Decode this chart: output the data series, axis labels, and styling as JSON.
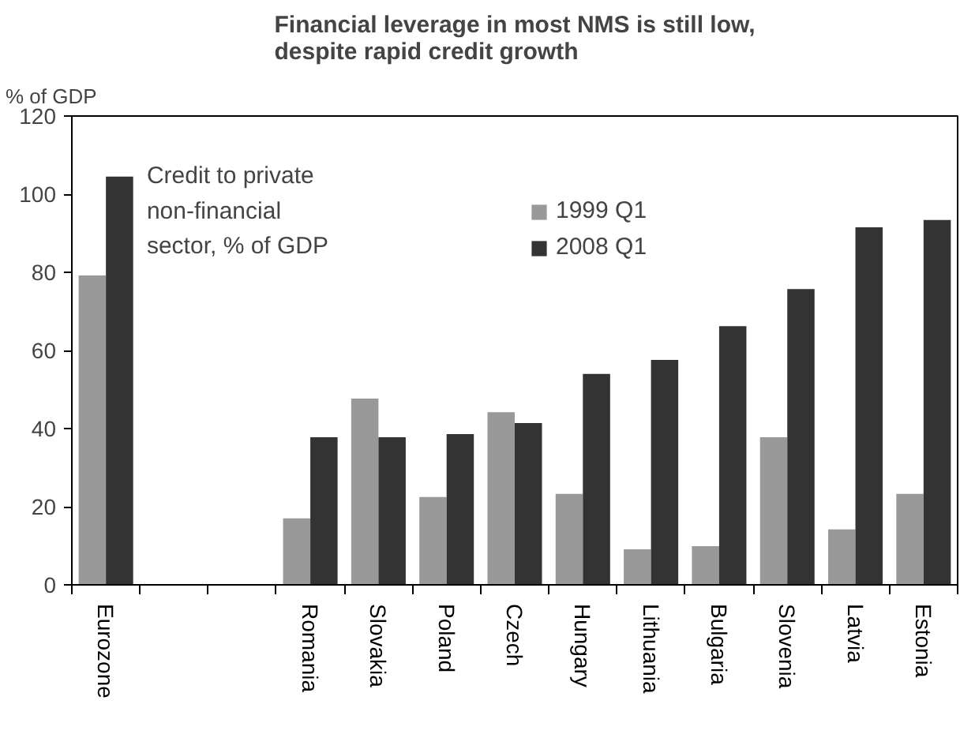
{
  "chart_data": {
    "type": "bar",
    "title": "Financial leverage in most NMS is still low,\ndespite rapid credit growth",
    "ylabel": "% of GDP",
    "categories": [
      "Eurozone",
      null,
      null,
      "Romania",
      "Slovakia",
      "Poland",
      "Czech",
      "Hungary",
      "Lithuania",
      "Bulgaria",
      "Slovenia",
      "Latvia",
      "Estonia"
    ],
    "series": [
      {
        "name": "1999 Q1",
        "color": "#999999",
        "values": [
          79.2,
          null,
          null,
          17,
          47.7,
          22.5,
          44.2,
          23.3,
          9.1,
          9.9,
          37.8,
          14.2,
          23.3
        ]
      },
      {
        "name": "2008 Q1",
        "color": "#333333",
        "values": [
          104.5,
          null,
          null,
          37.8,
          37.8,
          38.6,
          41.4,
          54,
          57.6,
          66.2,
          75.7,
          91.5,
          93.4
        ]
      }
    ],
    "ylim": [
      0,
      120
    ],
    "yticks": [
      0,
      20,
      40,
      60,
      80,
      100,
      120
    ],
    "grid": false,
    "legend": "top",
    "annotations": [
      "Credit to private\nnon-financial\nsector, % of GDP"
    ]
  }
}
